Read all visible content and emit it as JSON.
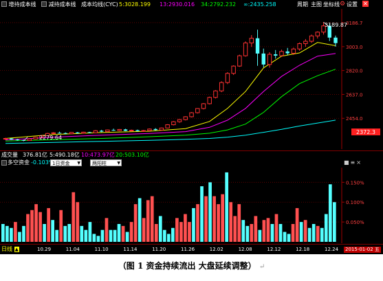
{
  "top_toolbar": {
    "items": [
      {
        "label": "增持成本线",
        "color": "#ffffff"
      },
      {
        "label": "减持成本线",
        "color": "#ffffff"
      },
      {
        "label": "成本均线(CYC)",
        "color": "#ffffff"
      }
    ],
    "values": [
      {
        "label": "5:3028.199",
        "color": "#ffff00"
      },
      {
        "label": "13:2930.016",
        "color": "#ff00ff"
      },
      {
        "label": "34:2792.232",
        "color": "#00ff00"
      },
      {
        "label": "∞:2435.258",
        "color": "#00ffff"
      }
    ],
    "right_buttons": [
      "周期",
      "主图",
      "坐标线",
      "设置"
    ]
  },
  "main_chart": {
    "annotations": {
      "high": "3189.87",
      "low": "2279.64"
    },
    "last_price": "2372.3",
    "axis_labels": [
      "3186.7",
      "3003.0",
      "2820.0",
      "2637.0",
      "2454.0"
    ]
  },
  "volume_panel": {
    "title": "成交量",
    "values": [
      {
        "label": "376.81亿",
        "color": "#ffffff"
      },
      {
        "label": "5:490.18亿",
        "color": "#ffffff"
      },
      {
        "label": "10:473.97亿",
        "color": "#ff00ff"
      },
      {
        "label": "20:503.10亿",
        "color": "#00ff00"
      }
    ]
  },
  "fund_panel": {
    "title": "多空资金",
    "value": "-0.103%",
    "select1": "1日资金",
    "select2": "两阳柱",
    "axis_labels": [
      "0.150%",
      "0.100%",
      "0.050%"
    ]
  },
  "bottom_bar": {
    "mode_label": "日线",
    "dates": [
      "10.29",
      "11.04",
      "11.10",
      "11.14",
      "11.20",
      "11.26",
      "12.02",
      "12.08",
      "12.12",
      "12.18",
      "12.24"
    ],
    "current_date": "2015-01-02 五"
  },
  "caption": {
    "text": "（图 1    资金持续流出  大盘延续调整）",
    "mark": "↵"
  },
  "chart_data": [
    {
      "type": "candlestick",
      "title": "",
      "series_legend": [
        "5",
        "13",
        "34",
        "∞"
      ],
      "ylim": [
        2250,
        3260
      ],
      "axis_ticks": [
        3186.7,
        3003.0,
        2820.0,
        2637.0,
        2454.0
      ],
      "candles": [
        {
          "o": 2295,
          "h": 2305,
          "l": 2288,
          "c": 2300
        },
        {
          "o": 2300,
          "h": 2303,
          "l": 2288,
          "c": 2292
        },
        {
          "o": 2291,
          "h": 2297,
          "l": 2283,
          "c": 2287
        },
        {
          "o": 2287,
          "h": 2291,
          "l": 2279.64,
          "c": 2284
        },
        {
          "o": 2284,
          "h": 2300,
          "l": 2282,
          "c": 2296
        },
        {
          "o": 2296,
          "h": 2313,
          "l": 2294,
          "c": 2309
        },
        {
          "o": 2309,
          "h": 2326,
          "l": 2306,
          "c": 2321
        },
        {
          "o": 2321,
          "h": 2343,
          "l": 2318,
          "c": 2338
        },
        {
          "o": 2338,
          "h": 2348,
          "l": 2333,
          "c": 2343
        },
        {
          "o": 2343,
          "h": 2352,
          "l": 2338,
          "c": 2341
        },
        {
          "o": 2341,
          "h": 2346,
          "l": 2333,
          "c": 2336
        },
        {
          "o": 2336,
          "h": 2348,
          "l": 2332,
          "c": 2346
        },
        {
          "o": 2346,
          "h": 2350,
          "l": 2336,
          "c": 2340
        },
        {
          "o": 2340,
          "h": 2351,
          "l": 2336,
          "c": 2348
        },
        {
          "o": 2348,
          "h": 2351,
          "l": 2340,
          "c": 2343
        },
        {
          "o": 2343,
          "h": 2364,
          "l": 2341,
          "c": 2359
        },
        {
          "o": 2359,
          "h": 2366,
          "l": 2348,
          "c": 2352
        },
        {
          "o": 2352,
          "h": 2368,
          "l": 2348,
          "c": 2365
        },
        {
          "o": 2365,
          "h": 2375,
          "l": 2358,
          "c": 2360
        },
        {
          "o": 2360,
          "h": 2372,
          "l": 2355,
          "c": 2369
        },
        {
          "o": 2369,
          "h": 2374,
          "l": 2356,
          "c": 2358
        },
        {
          "o": 2358,
          "h": 2368,
          "l": 2352,
          "c": 2363
        },
        {
          "o": 2363,
          "h": 2368,
          "l": 2353,
          "c": 2356
        },
        {
          "o": 2356,
          "h": 2365,
          "l": 2350,
          "c": 2360
        },
        {
          "o": 2360,
          "h": 2376,
          "l": 2356,
          "c": 2372
        },
        {
          "o": 2372,
          "h": 2379,
          "l": 2361,
          "c": 2364
        },
        {
          "o": 2364,
          "h": 2384,
          "l": 2360,
          "c": 2380
        },
        {
          "o": 2380,
          "h": 2409,
          "l": 2377,
          "c": 2405
        },
        {
          "o": 2405,
          "h": 2433,
          "l": 2400,
          "c": 2428
        },
        {
          "o": 2428,
          "h": 2448,
          "l": 2420,
          "c": 2444
        },
        {
          "o": 2444,
          "h": 2470,
          "l": 2438,
          "c": 2466
        },
        {
          "o": 2466,
          "h": 2502,
          "l": 2461,
          "c": 2497
        },
        {
          "o": 2497,
          "h": 2532,
          "l": 2491,
          "c": 2529
        },
        {
          "o": 2529,
          "h": 2571,
          "l": 2522,
          "c": 2566
        },
        {
          "o": 2566,
          "h": 2620,
          "l": 2560,
          "c": 2614
        },
        {
          "o": 2614,
          "h": 2670,
          "l": 2606,
          "c": 2664
        },
        {
          "o": 2664,
          "h": 2738,
          "l": 2654,
          "c": 2728
        },
        {
          "o": 2728,
          "h": 2808,
          "l": 2716,
          "c": 2798
        },
        {
          "o": 2798,
          "h": 2860,
          "l": 2786,
          "c": 2854
        },
        {
          "o": 2854,
          "h": 2941,
          "l": 2848,
          "c": 2933
        },
        {
          "o": 2933,
          "h": 3043,
          "l": 2926,
          "c": 3031
        },
        {
          "o": 3031,
          "h": 3091,
          "l": 3001,
          "c": 3067
        },
        {
          "o": 3067,
          "h": 3133,
          "l": 2856,
          "c": 2950
        },
        {
          "o": 2950,
          "h": 2988,
          "l": 2844,
          "c": 2866
        },
        {
          "o": 2866,
          "h": 2960,
          "l": 2842,
          "c": 2944
        },
        {
          "o": 2944,
          "h": 2977,
          "l": 2911,
          "c": 2934
        },
        {
          "o": 2934,
          "h": 2980,
          "l": 2925,
          "c": 2966
        },
        {
          "o": 2966,
          "h": 2993,
          "l": 2938,
          "c": 2952
        },
        {
          "o": 2952,
          "h": 2995,
          "l": 2940,
          "c": 2985
        },
        {
          "o": 2985,
          "h": 3035,
          "l": 2971,
          "c": 3026
        },
        {
          "o": 3026,
          "h": 3061,
          "l": 3002,
          "c": 3044
        },
        {
          "o": 3044,
          "h": 3095,
          "l": 3032,
          "c": 3085
        },
        {
          "o": 3085,
          "h": 3120,
          "l": 3065,
          "c": 3114
        },
        {
          "o": 3114,
          "h": 3189.87,
          "l": 3095,
          "c": 3162
        },
        {
          "o": 3162,
          "h": 3176,
          "l": 3046,
          "c": 3072
        },
        {
          "o": 3072,
          "h": 3088,
          "l": 3003,
          "c": 3030
        }
      ],
      "ma": {
        "5": {
          "x": [
            0,
            8,
            16,
            24,
            30,
            34,
            37,
            40,
            43,
            46,
            49,
            52,
            55
          ],
          "y": [
            2300,
            2330,
            2345,
            2355,
            2375,
            2430,
            2530,
            2660,
            2840,
            2930,
            2955,
            3035,
            3010
          ]
        },
        "13": {
          "x": [
            0,
            8,
            16,
            24,
            30,
            34,
            37,
            40,
            43,
            46,
            49,
            52,
            55
          ],
          "y": [
            2288,
            2310,
            2325,
            2338,
            2352,
            2385,
            2440,
            2530,
            2660,
            2775,
            2860,
            2930,
            2950
          ]
        },
        "34": {
          "x": [
            0,
            8,
            16,
            24,
            30,
            34,
            37,
            40,
            43,
            46,
            49,
            52,
            55
          ],
          "y": [
            2280,
            2290,
            2300,
            2313,
            2325,
            2340,
            2365,
            2410,
            2500,
            2620,
            2720,
            2780,
            2830
          ]
        },
        "∞": {
          "x": [
            0,
            8,
            16,
            24,
            30,
            34,
            37,
            40,
            43,
            46,
            49,
            52,
            55
          ],
          "y": [
            2262,
            2270,
            2278,
            2286,
            2293,
            2300,
            2310,
            2325,
            2347,
            2370,
            2395,
            2418,
            2440
          ]
        }
      }
    },
    {
      "type": "bar",
      "title": "多空资金",
      "ylim": [
        0,
        0.18
      ],
      "axis_ticks": [
        0.15,
        0.1,
        0.05
      ],
      "values": [
        0.045,
        0.04,
        0.035,
        0.05,
        0.025,
        0.04,
        0.07,
        0.08,
        0.095,
        0.075,
        0.045,
        0.085,
        0.055,
        0.03,
        0.08,
        0.04,
        0.045,
        0.125,
        0.1,
        0.04,
        0.03,
        0.05,
        0.02,
        0.015,
        0.03,
        0.06,
        0.03,
        0.03,
        0.045,
        0.04,
        0.025,
        0.05,
        0.095,
        0.11,
        0.06,
        0.105,
        0.115,
        0.045,
        0.065,
        0.03,
        0.02,
        0.035,
        0.06,
        0.05,
        0.07,
        0.05,
        0.085,
        0.095,
        0.14,
        0.115,
        0.15,
        0.115,
        0.095,
        0.12,
        0.175,
        0.1,
        0.065,
        0.095,
        0.055,
        0.04,
        0.045,
        0.065,
        0.03,
        0.055,
        0.06,
        0.045,
        0.07,
        0.045,
        0.025,
        0.02,
        0.045,
        0.085,
        0.05,
        0.055,
        0.035,
        0.045,
        0.04,
        0.035,
        0.07,
        0.145,
        0.1
      ],
      "colors": [
        "cyan",
        "cyan",
        "cyan",
        "red",
        "cyan",
        "cyan",
        "red",
        "red",
        "red",
        "red",
        "cyan",
        "red",
        "cyan",
        "cyan",
        "red",
        "cyan",
        "cyan",
        "red",
        "red",
        "cyan",
        "cyan",
        "cyan",
        "cyan",
        "cyan",
        "cyan",
        "red",
        "cyan",
        "cyan",
        "cyan",
        "red",
        "cyan",
        "red",
        "red",
        "cyan",
        "red",
        "red",
        "red",
        "red",
        "cyan",
        "cyan",
        "cyan",
        "cyan",
        "red",
        "red",
        "red",
        "red",
        "cyan",
        "red",
        "cyan",
        "red",
        "cyan",
        "red",
        "red",
        "red",
        "cyan",
        "red",
        "red",
        "red",
        "cyan",
        "cyan",
        "red",
        "red",
        "cyan",
        "red",
        "red",
        "cyan",
        "red",
        "cyan",
        "cyan",
        "cyan",
        "red",
        "red",
        "cyan",
        "red",
        "cyan",
        "cyan",
        "red",
        "cyan",
        "cyan",
        "cyan",
        "cyan"
      ]
    }
  ]
}
